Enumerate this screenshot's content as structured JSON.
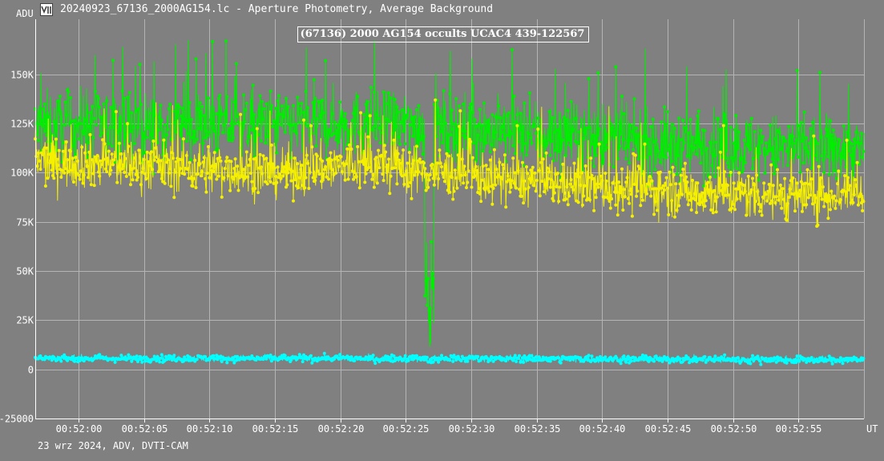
{
  "window": {
    "title": "20240923_67136_2000AG154.lc - Aperture Photometry, Average Background",
    "icon": "lightcurve-app-icon"
  },
  "footer": {
    "text": "23 wrz 2024, ADV, DVTI-CAM"
  },
  "colors": {
    "background": "#808080",
    "grid": "#b4b4b4",
    "text": "#ffffff",
    "target_series": "#00ee00",
    "comparison_series": "#f5f000",
    "background_series": "#00ffff"
  },
  "chart_data": {
    "type": "line",
    "title": "(67136) 2000 AG154 occults UCAC4 439-122567",
    "y_unit_label": "ADU",
    "x_unit_label": "UT",
    "x_ticks": [
      "00:52:00",
      "00:52:05",
      "00:52:10",
      "00:52:15",
      "00:52:20",
      "00:52:25",
      "00:52:30",
      "00:52:35",
      "00:52:40",
      "00:52:45",
      "00:52:50",
      "00:52:55"
    ],
    "x_tick_seconds": [
      0,
      5,
      10,
      15,
      20,
      25,
      30,
      35,
      40,
      45,
      50,
      55
    ],
    "xlim_seconds": [
      -3.3,
      60.0
    ],
    "y_ticks": [
      {
        "value": 150000,
        "label": "150K"
      },
      {
        "value": 125000,
        "label": "125K"
      },
      {
        "value": 100000,
        "label": "100K"
      },
      {
        "value": 75000,
        "label": "75K"
      },
      {
        "value": 50000,
        "label": "50K"
      },
      {
        "value": 25000,
        "label": "25K"
      },
      {
        "value": 0,
        "label": "0"
      },
      {
        "value": -25000,
        "label": "-25000"
      }
    ],
    "ylim": [
      -25000,
      178000
    ],
    "grid": true,
    "series": [
      {
        "key": "target",
        "color": "#00ee00",
        "samples": 1600,
        "baseline": [
          [
            -3.3,
            124000
          ],
          [
            10,
            124000
          ],
          [
            22,
            125000
          ],
          [
            35,
            120000
          ],
          [
            45,
            114000
          ],
          [
            55,
            112000
          ],
          [
            60,
            112000
          ]
        ],
        "scatter": 12000,
        "events": [
          [
            26.8,
            0.35,
            108000
          ]
        ]
      },
      {
        "key": "comparison",
        "color": "#f5f000",
        "samples": 1600,
        "baseline": [
          [
            -3.3,
            106000
          ],
          [
            5,
            104000
          ],
          [
            15,
            100000
          ],
          [
            22,
            104000
          ],
          [
            35,
            95000
          ],
          [
            45,
            91000
          ],
          [
            55,
            88000
          ],
          [
            60,
            91000
          ]
        ],
        "scatter": 9000,
        "events": []
      },
      {
        "key": "background",
        "color": "#00ffff",
        "samples": 1600,
        "baseline": [
          [
            -3.3,
            5600
          ],
          [
            30,
            5500
          ],
          [
            60,
            4800
          ]
        ],
        "scatter": 1300,
        "events": [
          [
            26.9,
            0.25,
            1000
          ]
        ]
      }
    ]
  }
}
